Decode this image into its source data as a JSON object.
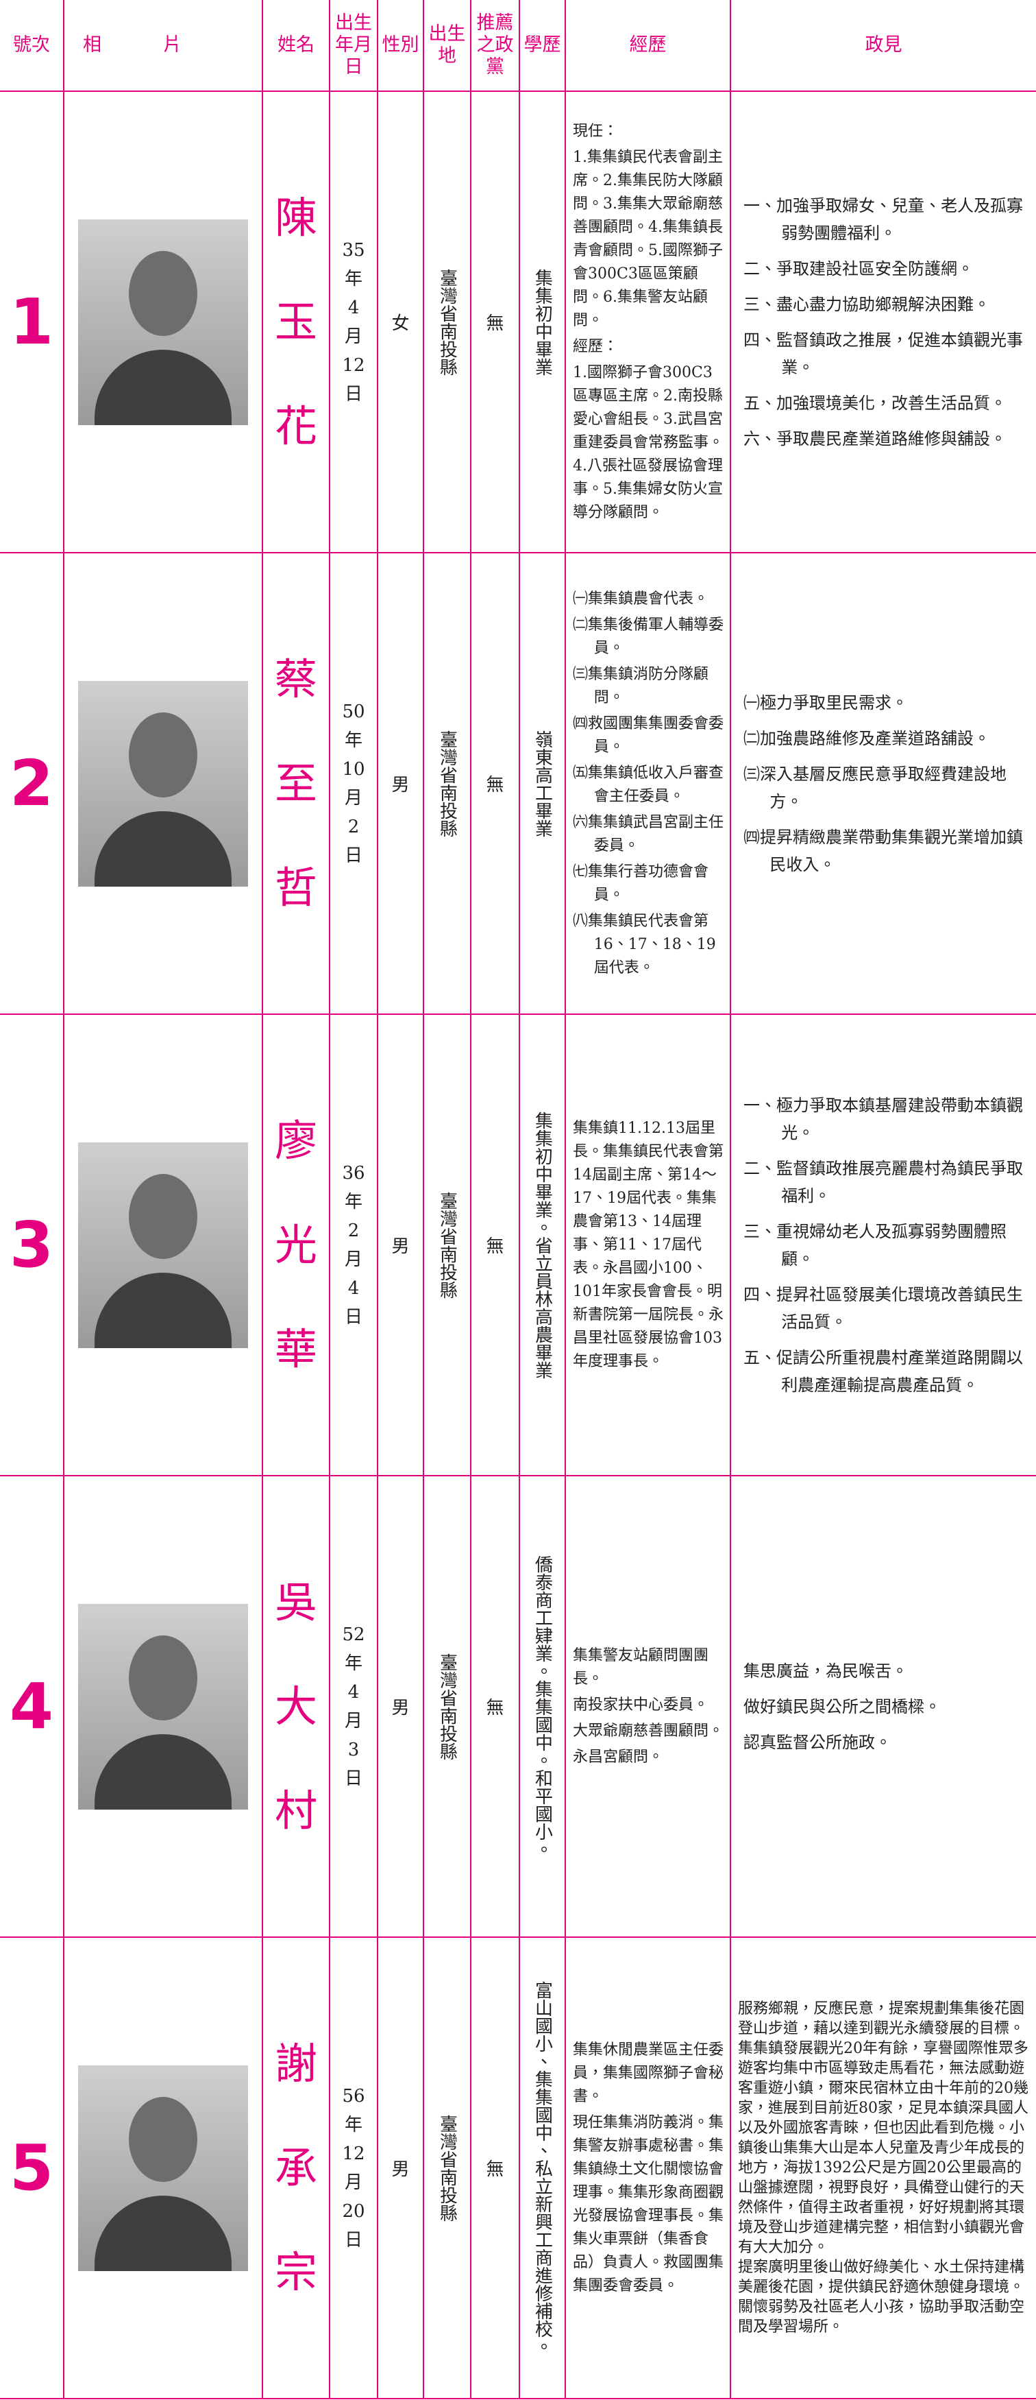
{
  "header": {
    "columns": [
      "號次",
      "相片",
      "姓名",
      "出生年月日",
      "性別",
      "出生地",
      "推薦之政黨",
      "學歷",
      "經歷",
      "政見"
    ]
  },
  "candidates": [
    {
      "number": "1",
      "name": "陳玉花",
      "birth": "35年4月12日",
      "gender": "女",
      "birthplace": "臺灣省南投縣",
      "party": "無",
      "education": "集集初中畢業",
      "experience": [
        "現任：",
        "1.集集鎮民代表會副主席。2.集集民防大隊顧問。3.集集大眾爺廟慈善團顧問。4.集集鎮長青會顧問。5.國際獅子會300C3區區策顧問。6.集集警友站顧問。",
        "經歷：",
        "1.國際獅子會300C3區專區主席。2.南投縣愛心會組長。3.武昌宮重建委員會常務監事。4.八張社區發展協會理事。5.集集婦女防火宣導分隊顧問。"
      ],
      "platform": [
        "一、加強爭取婦女、兒童、老人及孤寡弱勢團體福利。",
        "二、爭取建設社區安全防護網。",
        "三、盡心盡力協助鄉親解決困難。",
        "四、監督鎮政之推展，促進本鎮觀光事業。",
        "五、加強環境美化，改善生活品質。",
        "六、爭取農民產業道路維修與舖設。"
      ]
    },
    {
      "number": "2",
      "name": "蔡至哲",
      "birth": "50年10月2日",
      "gender": "男",
      "birthplace": "臺灣省南投縣",
      "party": "無",
      "education": "嶺東高工畢業",
      "experience": [
        "㈠集集鎮農會代表。",
        "㈡集集後備軍人輔導委員。",
        "㈢集集鎮消防分隊顧問。",
        "㈣救國團集集團委會委員。",
        "㈤集集鎮低收入戶審查會主任委員。",
        "㈥集集鎮武昌宮副主任委員。",
        "㈦集集行善功德會會員。",
        "㈧集集鎮民代表會第16、17、18、19屆代表。"
      ],
      "platform": [
        "㈠極力爭取里民需求。",
        "㈡加強農路維修及產業道路舖設。",
        "㈢深入基層反應民意爭取經費建設地方。",
        "㈣提昇精緻農業帶動集集觀光業增加鎮民收入。"
      ]
    },
    {
      "number": "3",
      "name": "廖光華",
      "birth": "36年2月4日",
      "gender": "男",
      "birthplace": "臺灣省南投縣",
      "party": "無",
      "education": "集集初中畢業。省立員林高農畢業",
      "experience": [
        "集集鎮11.12.13屆里長。集集鎮民代表會第14屆副主席、第14～17、19屆代表。集集農會第13、14屆理事、第11、17屆代表。永昌國小100、101年家長會會長。明新書院第一屆院長。永昌里社區發展協會103年度理事長。"
      ],
      "platform": [
        "一、極力爭取本鎮基層建設帶動本鎮觀光。",
        "二、監督鎮政推展亮麗農村為鎮民爭取福利。",
        "三、重視婦幼老人及孤寡弱勢團體照顧。",
        "四、提昇社區發展美化環境改善鎮民生活品質。",
        "五、促請公所重視農村產業道路開闢以利農產運輸提高農產品質。"
      ]
    },
    {
      "number": "4",
      "name": "吳大村",
      "birth": "52年4月3日",
      "gender": "男",
      "birthplace": "臺灣省南投縣",
      "party": "無",
      "education": "僑泰商工肄業。集集國中。和平國小。",
      "experience": [
        "集集警友站顧問團團長。",
        "南投家扶中心委員。",
        "大眾爺廟慈善團顧問。",
        "永昌宮顧問。"
      ],
      "platform": [
        "集思廣益，為民喉舌。",
        "做好鎮民與公所之間橋樑。",
        "認真監督公所施政。"
      ]
    },
    {
      "number": "5",
      "name": "謝承宗",
      "birth": "56年12月20日",
      "gender": "男",
      "birthplace": "臺灣省南投縣",
      "party": "無",
      "education": "富山國小、集集國中、私立新興工商進修補校。",
      "experience": [
        "集集休閒農業區主任委員，集集國際獅子會秘書。",
        "現任集集消防義消。集集警友辦事處秘書。集集鎮綠土文化關懷協會理事。集集形象商圈觀光發展協會理事長。集集火車票餅（集香食品）負責人。救國團集集團委會委員。"
      ],
      "platform": [
        "服務鄉親，反應民意，提案規劃集集後花園登山步道，藉以達到觀光永續發展的目標。",
        "集集鎮發展觀光20年有餘，享譽國際惟眾多遊客均集中市區導致走馬看花，無法感動遊客重遊小鎮，爾來民宿林立由十年前的20幾家，進展到目前近80家，足見本鎮深具國人以及外國旅客青睞，但也因此看到危機。小鎮後山集集大山是本人兒童及青少年成長的地方，海拔1392公尺是方圓20公里最高的山盤據遼闊，視野良好，具備登山健行的天然條件，值得主政者重視，好好規劃將其環境及登山步道建構完整，相信對小鎮觀光會有大大加分。",
        "提案廣明里後山做好綠美化、水土保持建構美麗後花園，提供鎮民舒適休憩健身環境。",
        "關懷弱勢及社區老人小孩，協助爭取活動空間及學習場所。"
      ]
    }
  ]
}
